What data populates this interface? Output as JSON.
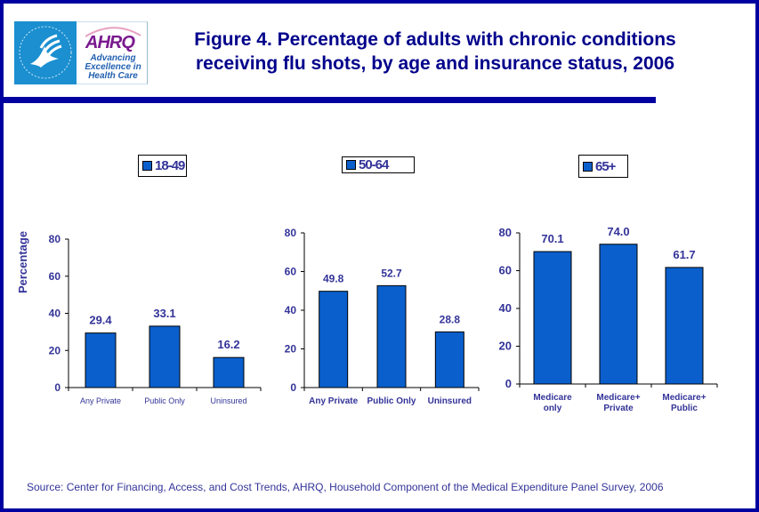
{
  "header": {
    "title_line1": "Figure 4. Percentage of adults with chronic conditions",
    "title_line2": "receiving flu shots, by age and insurance status, 2006",
    "logo": {
      "hhs_icon": "hhs-eagle-icon",
      "ahrq_name": "AHRQ",
      "ahrq_tagline": [
        "Advancing",
        "Excellence in",
        "Health Care"
      ]
    }
  },
  "footer": {
    "source": "Source: Center for Financing, Access, and Cost Trends, AHRQ, Household Component of the Medical Expenditure Panel Survey, 2006"
  },
  "colors": {
    "bar": "#0a5fcc",
    "text": "#333399",
    "title": "#00008b",
    "frame": "#0000a0"
  },
  "chart_data": [
    {
      "type": "bar",
      "title": "",
      "legend": "18-49",
      "legend_position": "top",
      "ylabel": "Percentage",
      "xlabel": "",
      "ylim": [
        0,
        80
      ],
      "yticks": [
        0,
        20,
        40,
        60,
        80
      ],
      "categories": [
        "Any Private",
        "Public Only",
        "Uninsured"
      ],
      "values": [
        29.4,
        33.1,
        16.2
      ],
      "value_labels": [
        "29.4",
        "33.1",
        "16.2"
      ],
      "grid": false
    },
    {
      "type": "bar",
      "title": "",
      "legend": "50-64",
      "legend_position": "top",
      "ylabel": "",
      "xlabel": "",
      "ylim": [
        0,
        80
      ],
      "yticks": [
        0,
        20,
        40,
        60,
        80
      ],
      "categories": [
        "Any Private",
        "Public Only",
        "Uninsured"
      ],
      "values": [
        49.8,
        52.7,
        28.8
      ],
      "value_labels": [
        "49.8",
        "52.7",
        "28.8"
      ],
      "grid": false
    },
    {
      "type": "bar",
      "title": "",
      "legend": "65+",
      "legend_position": "top",
      "ylabel": "",
      "xlabel": "",
      "ylim": [
        0,
        80
      ],
      "yticks": [
        0,
        20,
        40,
        60,
        80
      ],
      "categories": [
        [
          "Medicare",
          "only"
        ],
        [
          "Medicare+",
          "Private"
        ],
        [
          "Medicare+",
          "Public"
        ]
      ],
      "values": [
        70.1,
        74.0,
        61.7
      ],
      "value_labels": [
        "70.1",
        "74.0",
        "61.7"
      ],
      "grid": false
    }
  ]
}
